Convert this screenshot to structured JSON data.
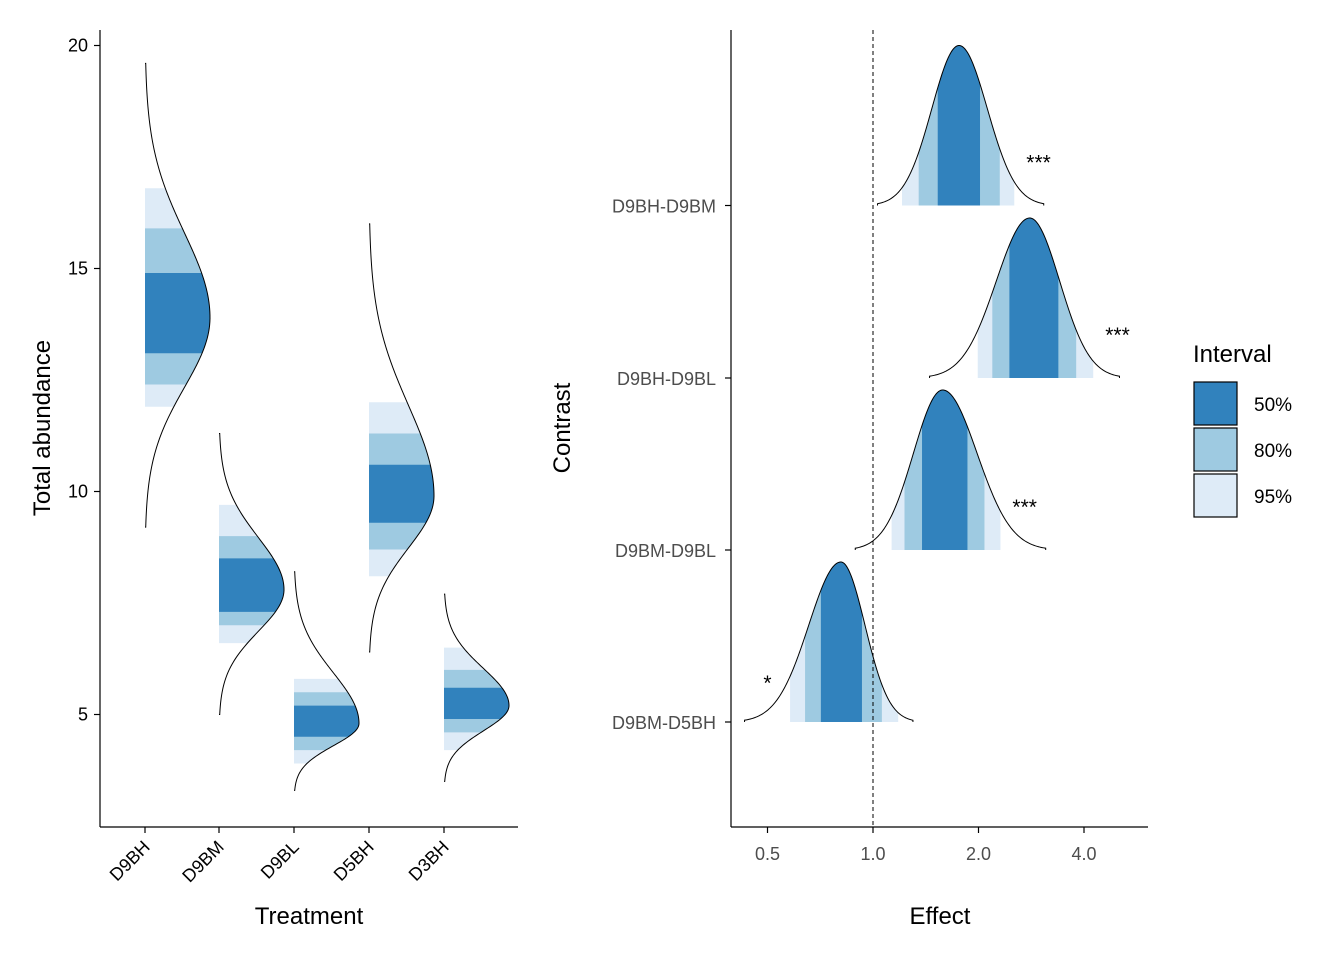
{
  "colors": {
    "interval_50": "#3182bd",
    "interval_80": "#9ecae1",
    "interval_95": "#deebf7",
    "outline": "#000000",
    "background": "#ffffff"
  },
  "legend": {
    "title": "Interval",
    "items": [
      {
        "label": "50%",
        "color": "#3182bd"
      },
      {
        "label": "80%",
        "color": "#9ecae1"
      },
      {
        "label": "95%",
        "color": "#deebf7"
      }
    ],
    "placement": "right"
  },
  "chart_data": [
    {
      "type": "area",
      "subtype": "half-eye posterior density by group",
      "title": "",
      "xlabel": "Treatment",
      "ylabel": "Total abundance",
      "categories": [
        "D9BH",
        "D9BM",
        "D9BL",
        "D5BH",
        "D3BH"
      ],
      "ylim": [
        2.5,
        20.4
      ],
      "y_ticks": [
        5,
        10,
        15,
        20
      ],
      "y_tick_labels": [
        "5",
        "10",
        "15",
        "20"
      ],
      "grid": false,
      "groups": [
        {
          "name": "D9BH",
          "median": 13.9,
          "range": [
            9.2,
            19.6
          ],
          "ci50": [
            13.1,
            14.9
          ],
          "ci80": [
            12.4,
            15.9
          ],
          "ci95": [
            11.9,
            16.8
          ]
        },
        {
          "name": "D9BM",
          "median": 7.8,
          "range": [
            5.0,
            11.3
          ],
          "ci50": [
            7.3,
            8.5
          ],
          "ci80": [
            7.0,
            9.0
          ],
          "ci95": [
            6.6,
            9.7
          ]
        },
        {
          "name": "D9BL",
          "median": 4.8,
          "range": [
            3.3,
            8.2
          ],
          "ci50": [
            4.5,
            5.2
          ],
          "ci80": [
            4.2,
            5.5
          ],
          "ci95": [
            3.9,
            5.8
          ]
        },
        {
          "name": "D5BH",
          "median": 9.9,
          "range": [
            6.4,
            16.0
          ],
          "ci50": [
            9.3,
            10.6
          ],
          "ci80": [
            8.7,
            11.3
          ],
          "ci95": [
            8.1,
            12.0
          ]
        },
        {
          "name": "D3BH",
          "median": 5.2,
          "range": [
            3.5,
            7.7
          ],
          "ci50": [
            4.9,
            5.6
          ],
          "ci80": [
            4.6,
            6.0
          ],
          "ci95": [
            4.2,
            6.5
          ]
        }
      ]
    },
    {
      "type": "area",
      "subtype": "half-eye posterior density of contrasts (log2 x scale)",
      "title": "",
      "xlabel": "Effect",
      "ylabel": "Contrast",
      "x_scale": "log2",
      "xlim": [
        0.4,
        5.0
      ],
      "x_ticks": [
        0.5,
        1.0,
        2.0,
        4.0
      ],
      "x_tick_labels": [
        "0.5",
        "1.0",
        "2.0",
        "4.0"
      ],
      "reference_line": 1.0,
      "grid": false,
      "categories": [
        "D9BH-D9BM",
        "D9BH-D9BL",
        "D9BM-D9BL",
        "D9BM-D5BH"
      ],
      "groups": [
        {
          "name": "D9BH-D9BM",
          "median": 1.76,
          "range": [
            1.03,
            3.07
          ],
          "ci50": [
            1.53,
            2.02
          ],
          "ci80": [
            1.35,
            2.3
          ],
          "ci95": [
            1.21,
            2.53
          ],
          "significance": "***"
        },
        {
          "name": "D9BH-D9BL",
          "median": 2.8,
          "range": [
            1.45,
            5.05
          ],
          "ci50": [
            2.45,
            3.38
          ],
          "ci80": [
            2.19,
            3.8
          ],
          "ci95": [
            1.99,
            4.25
          ],
          "significance": "***"
        },
        {
          "name": "D9BM-D9BL",
          "median": 1.58,
          "range": [
            0.89,
            3.11
          ],
          "ci50": [
            1.38,
            1.86
          ],
          "ci80": [
            1.23,
            2.08
          ],
          "ci95": [
            1.13,
            2.31
          ],
          "significance": "***"
        },
        {
          "name": "D9BM-D5BH",
          "median": 0.81,
          "range": [
            0.43,
            1.3
          ],
          "ci50": [
            0.71,
            0.93
          ],
          "ci80": [
            0.64,
            1.06
          ],
          "ci95": [
            0.58,
            1.18
          ],
          "significance": "*"
        }
      ]
    }
  ]
}
